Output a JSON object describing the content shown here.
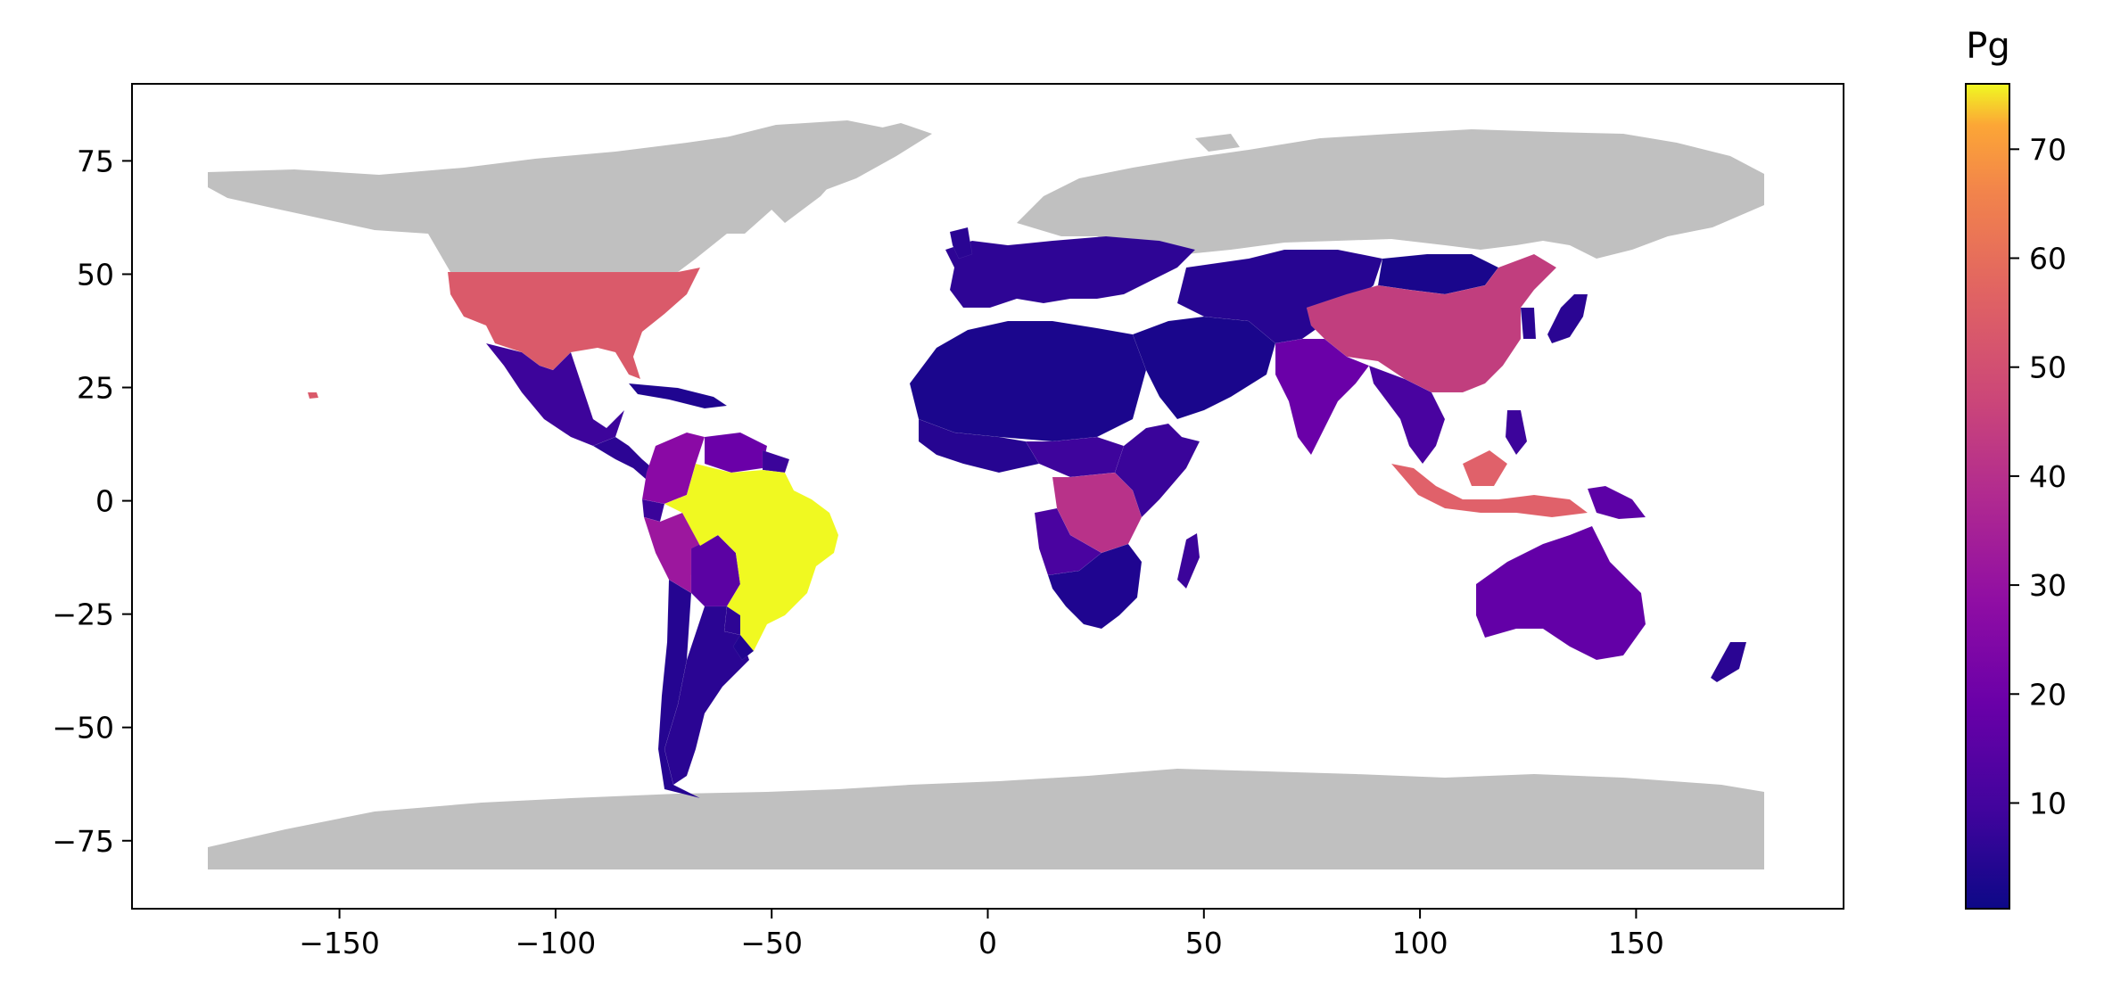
{
  "chart_data": {
    "type": "choropleth",
    "title": "",
    "xlabel": "",
    "ylabel": "",
    "xlim": [
      -198,
      198
    ],
    "ylim": [
      -90,
      92
    ],
    "x_ticks": [
      -150,
      -100,
      -50,
      0,
      50,
      100,
      150
    ],
    "y_ticks": [
      -75,
      -50,
      -25,
      0,
      25,
      50,
      75
    ],
    "x_tick_labels": [
      "−150",
      "−100",
      "−50",
      "0",
      "50",
      "100",
      "150"
    ],
    "y_tick_labels": [
      "−75",
      "−50",
      "−25",
      "0",
      "25",
      "50",
      "75"
    ],
    "grid": false,
    "nodata_color": "#c0c0c0",
    "colorbar": {
      "title": "Pg",
      "colormap": "plasma",
      "range": [
        0.3,
        76
      ],
      "ticks": [
        10,
        20,
        30,
        40,
        50,
        60,
        70
      ],
      "tick_labels": [
        "10",
        "20",
        "30",
        "40",
        "50",
        "60",
        "70"
      ]
    },
    "regions": [
      {
        "name": "Brazil",
        "value": 75
      },
      {
        "name": "United States",
        "value": 41
      },
      {
        "name": "China",
        "value": 35
      },
      {
        "name": "Indonesia",
        "value": 40
      },
      {
        "name": "DR Congo",
        "value": 30
      },
      {
        "name": "Peru",
        "value": 20
      },
      {
        "name": "Colombia",
        "value": 18
      },
      {
        "name": "India",
        "value": 14
      },
      {
        "name": "Australia",
        "value": 12
      },
      {
        "name": "Venezuela",
        "value": 11
      },
      {
        "name": "Papua New Guinea",
        "value": 9
      },
      {
        "name": "Mexico",
        "value": 7
      },
      {
        "name": "Bolivia",
        "value": 7
      },
      {
        "name": "Angola",
        "value": 6
      },
      {
        "name": "Myanmar",
        "value": 6
      },
      {
        "name": "Argentina",
        "value": 4
      },
      {
        "name": "Russia region",
        "value": 3
      },
      {
        "name": "Kazakhstan",
        "value": 2
      },
      {
        "name": "Europe",
        "value": 3
      },
      {
        "name": "North Africa",
        "value": 1
      },
      {
        "name": "Middle East",
        "value": 1
      },
      {
        "name": "Central Asia",
        "value": 2
      },
      {
        "name": "Mongolia",
        "value": 1
      },
      {
        "name": "Southern Africa",
        "value": 2
      },
      {
        "name": "West Africa",
        "value": 3
      },
      {
        "name": "East Africa",
        "value": 4
      },
      {
        "name": "Central America",
        "value": 5
      },
      {
        "name": "Southeast Asia mainland",
        "value": 6
      },
      {
        "name": "Japan",
        "value": 3
      },
      {
        "name": "Korea",
        "value": 2
      },
      {
        "name": "Madagascar",
        "value": 4
      },
      {
        "name": "New Zealand",
        "value": 3
      },
      {
        "name": "Chile",
        "value": 3
      },
      {
        "name": "Philippines",
        "value": 5
      },
      {
        "name": "Hawaii",
        "value": 41
      }
    ]
  }
}
